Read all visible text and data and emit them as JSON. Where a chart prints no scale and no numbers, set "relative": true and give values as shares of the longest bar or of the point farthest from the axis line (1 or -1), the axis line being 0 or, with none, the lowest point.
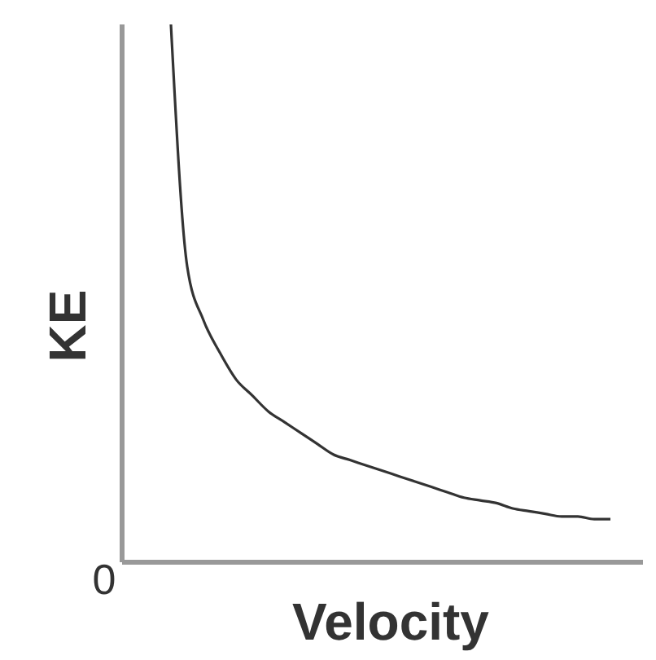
{
  "chart_data": {
    "type": "line",
    "relative": true,
    "xlabel": "Velocity",
    "ylabel": "KE",
    "annotations": [
      "0"
    ],
    "categories": [
      null,
      null,
      null,
      null,
      null,
      null,
      null,
      null,
      null,
      null,
      null,
      null,
      null,
      null,
      null,
      null,
      null,
      null,
      null,
      null,
      null,
      null,
      null,
      null,
      null,
      null,
      null,
      null,
      null,
      null,
      null,
      null,
      null
    ],
    "series": [
      {
        "color": "#333333",
        "values": [
          null,
          null,
          null,
          1.0,
          0.55,
          0.45,
          0.39,
          0.34,
          0.31,
          0.28,
          0.26,
          0.24,
          0.22,
          0.2,
          0.19,
          0.18,
          0.17,
          0.16,
          0.15,
          0.14,
          0.13,
          0.12,
          0.115,
          0.11,
          0.1,
          0.095,
          0.09,
          0.085,
          0.085,
          0.08,
          0.08,
          null,
          null
        ]
      }
    ],
    "grid": false,
    "legend": false,
    "marker": "none",
    "line_style": "solid"
  }
}
